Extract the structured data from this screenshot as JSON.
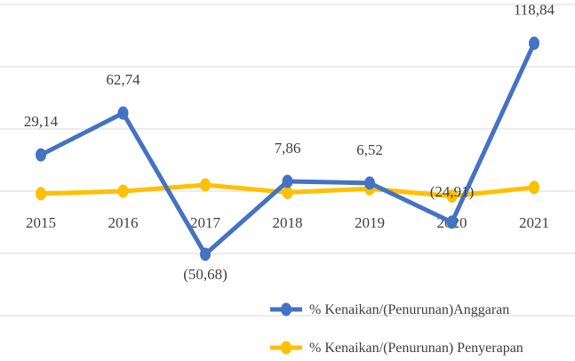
{
  "chart_data": {
    "type": "line",
    "title": "",
    "xlabel": "",
    "ylabel": "",
    "categories": [
      "2015",
      "2016",
      "2017",
      "2018",
      "2019",
      "2020",
      "2021"
    ],
    "ylim": [
      -100,
      150
    ],
    "gridlines": [
      150,
      100,
      50,
      0,
      -50,
      -100
    ],
    "grid": true,
    "legend_position": "bottom-right",
    "series": [
      {
        "name": "% Kenaikan/(Penurunan)Anggaran",
        "color": "#4472C4",
        "values": [
          29.14,
          62.74,
          -50.68,
          7.86,
          6.52,
          -24.91,
          118.84
        ],
        "labels": [
          "29,14",
          "62,74",
          "(50,68)",
          "7,86",
          "6,52",
          "(24,91)",
          "118,84"
        ]
      },
      {
        "name": "% Kenaikan/(Penurunan) Penyerapan",
        "color": "#FFC000",
        "values": [
          -2,
          0,
          5,
          -1,
          2,
          -4,
          3
        ]
      }
    ]
  }
}
